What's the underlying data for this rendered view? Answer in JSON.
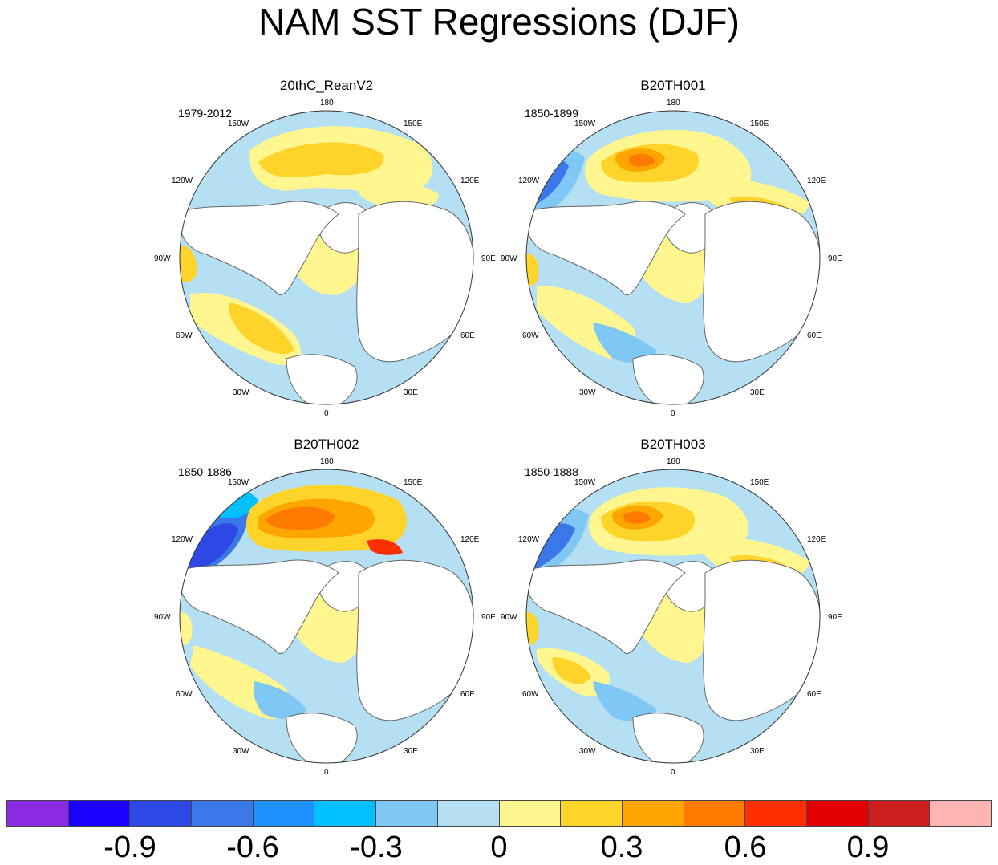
{
  "title": "NAM SST Regressions (DJF)",
  "panels": [
    {
      "name": "20thC_ReanV2",
      "period": "1979-2012"
    },
    {
      "name": "B20TH001",
      "period": "1850-1899"
    },
    {
      "name": "B20TH002",
      "period": "1850-1886"
    },
    {
      "name": "B20TH003",
      "period": "1850-1888"
    }
  ],
  "longitude_labels": [
    "180",
    "150E",
    "120E",
    "90E",
    "60E",
    "30E",
    "0",
    "30W",
    "60W",
    "90W",
    "120W",
    "150W"
  ],
  "colorbar": {
    "colors": [
      "#8A2BE2",
      "#1C00FF",
      "#2E48E6",
      "#3A78EA",
      "#1E90FF",
      "#00BFFF",
      "#7FC8F5",
      "#B5DFF2",
      "#FFF68F",
      "#FFD42A",
      "#FFA500",
      "#FF7A00",
      "#FF3000",
      "#E50000",
      "#CC1E1E",
      "#FFB3B3"
    ],
    "tick_labels": [
      "-0.9",
      "-0.6",
      "-0.3",
      "0",
      "0.3",
      "0.6",
      "0.9"
    ]
  },
  "palette": {
    "ocean_default": "#B5DFF2",
    "land": "#ffffff",
    "coast": "#666666"
  }
}
